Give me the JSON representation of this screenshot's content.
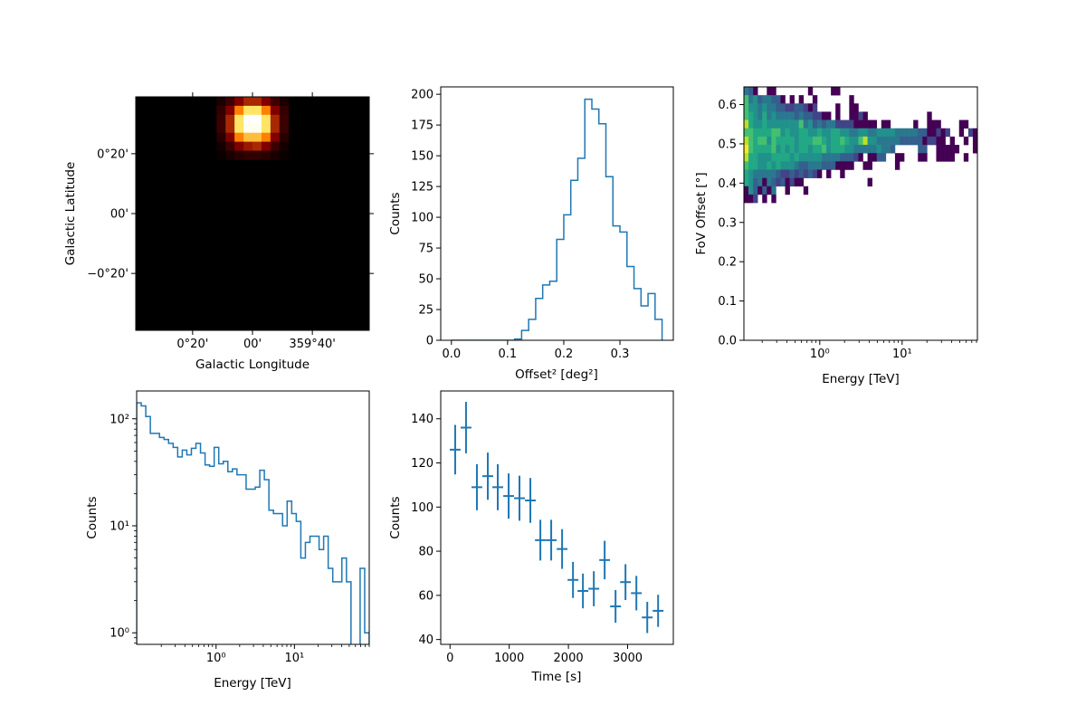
{
  "colors": {
    "line": "#1f77b4",
    "axes": "#000000",
    "background": "#ffffff"
  },
  "chart_data": [
    {
      "id": "sky",
      "type": "heatmap",
      "xlabel": "Galactic Longitude",
      "ylabel": "Galactic Latitude",
      "colormap": "afmhot",
      "xlim_deg": [
        0.65,
        -0.65
      ],
      "ylim_deg": [
        -0.65,
        0.65
      ],
      "x_ticks": [
        {
          "value": 0.3333,
          "label": "0°20'"
        },
        {
          "value": 0,
          "label": "00'"
        },
        {
          "value": -0.3333,
          "label": "359°40'"
        }
      ],
      "y_ticks": [
        {
          "value": 0.3333,
          "label": "0°20'"
        },
        {
          "value": 0,
          "label": "00'"
        },
        {
          "value": -0.3333,
          "label": "−0°20'"
        }
      ],
      "source_pixels_normalized": [
        [
          0.05,
          0.12,
          0.25,
          0.33,
          0.33,
          0.25,
          0.12,
          0.05
        ],
        [
          0.1,
          0.25,
          0.5,
          0.7,
          0.7,
          0.5,
          0.25,
          0.1
        ],
        [
          0.12,
          0.33,
          0.7,
          1.0,
          1.0,
          0.7,
          0.33,
          0.12
        ],
        [
          0.12,
          0.33,
          0.7,
          0.97,
          0.97,
          0.7,
          0.33,
          0.12
        ],
        [
          0.08,
          0.25,
          0.5,
          0.62,
          0.62,
          0.5,
          0.25,
          0.08
        ],
        [
          0.04,
          0.12,
          0.25,
          0.3,
          0.33,
          0.25,
          0.12,
          0.04
        ],
        [
          0.02,
          0.05,
          0.08,
          0.1,
          0.1,
          0.08,
          0.05,
          0.02
        ]
      ]
    },
    {
      "id": "offset",
      "type": "bar",
      "histtype": "step",
      "xlabel": "Offset² [deg²]",
      "ylabel": "Counts",
      "xlim": [
        -0.019,
        0.395
      ],
      "ylim": [
        0,
        206
      ],
      "bin_range": [
        0,
        0.375
      ],
      "values": [
        0,
        0,
        0,
        0,
        0,
        0,
        0,
        0,
        0,
        1,
        8,
        17,
        34,
        45,
        48,
        82,
        102,
        130,
        148,
        196,
        188,
        176,
        133,
        93,
        88,
        60,
        42,
        28,
        38,
        17
      ],
      "x_ticks": [
        0.0,
        0.1,
        0.2,
        0.3
      ],
      "x_tick_labels": [
        "0.0",
        "0.1",
        "0.2",
        "0.3"
      ],
      "y_ticks": [
        0,
        25,
        50,
        75,
        100,
        125,
        150,
        175,
        200
      ],
      "y_tick_labels": [
        "0",
        "25",
        "50",
        "75",
        "100",
        "125",
        "150",
        "175",
        "200"
      ]
    },
    {
      "id": "offset-energy",
      "type": "heatmap",
      "colormap": "viridis",
      "xlabel": "Energy [TeV]",
      "ylabel": "FoV Offset [°]",
      "xscale": "log",
      "xlim": [
        0.12,
        82
      ],
      "ylim": [
        0,
        0.645
      ],
      "x_bin_range": [
        0.12,
        82
      ],
      "y_bin_range": [
        0.35,
        0.645
      ],
      "levels_top_to_bottom": [
        "431001100000001000011000000000000000000000000000000",
        "745344331010100100000001000000000000000000000000000",
        "755454433223321200001001100000000000000000000000000",
        "765464544443433221101001121000000000000010000000000",
        "865565555555745343442222111110110000010011100001100",
        "776666775655665565566554455445555444443311212001021",
        "876775766665666776566765578554444433333122110100101",
        "976666756565665667566655444445443000003300111110001",
        "866555666656555554444333210113300110001100111100100",
        "766556565554334443331111001100000100000000000000000",
        "654444432232323210100100000000000000000000000000000",
        "653414323121100000000000000100000000000000000000000",
        "153131400100010000000000000000000000000000000000000",
        "112010100000000000000000000000000000000000000000000"
      ],
      "level_colors": [
        "#ffffff",
        "#440154",
        "#414487",
        "#355f8d",
        "#2a788e",
        "#21918c",
        "#22a884",
        "#44bf70",
        "#bddf26",
        "#fde725"
      ],
      "x_ticks": [
        1,
        10
      ],
      "x_tick_labels": [
        "10⁰",
        "10¹"
      ],
      "y_ticks": [
        0,
        0.1,
        0.2,
        0.3,
        0.4,
        0.5,
        0.6
      ],
      "y_tick_labels": [
        "0.0",
        "0.1",
        "0.2",
        "0.3",
        "0.4",
        "0.5",
        "0.6"
      ]
    },
    {
      "id": "energy",
      "type": "bar",
      "histtype": "step",
      "xlabel": "Energy [TeV]",
      "ylabel": "Counts",
      "xscale": "log",
      "yscale": "log",
      "xlim": [
        0.097,
        90
      ],
      "ylim": [
        0.78,
        182
      ],
      "bin_range": [
        0.097,
        90
      ],
      "values": [
        141,
        132,
        105,
        73,
        73,
        67,
        64,
        59,
        54,
        44,
        51,
        46,
        53,
        59,
        48,
        37,
        36,
        54,
        38,
        40,
        32,
        34,
        30,
        30,
        22,
        22,
        23,
        33,
        27,
        14,
        13,
        13,
        10,
        17,
        13,
        11,
        5,
        7,
        8,
        8,
        6,
        8,
        4,
        3,
        3,
        5,
        3,
        0,
        0,
        4,
        1
      ],
      "x_ticks": [
        1,
        10
      ],
      "x_tick_labels": [
        "10⁰",
        "10¹"
      ],
      "y_ticks": [
        1,
        10,
        100
      ],
      "y_tick_labels": [
        "10⁰",
        "10¹",
        "10²"
      ]
    },
    {
      "id": "lightcurve",
      "type": "scatter",
      "errorbars": true,
      "xlabel": "Time [s]",
      "ylabel": "Counts",
      "xlim": [
        -157,
        3772
      ],
      "ylim": [
        37.8,
        152.6
      ],
      "x": [
        87,
        270,
        454,
        638,
        806,
        990,
        1173,
        1357,
        1526,
        1709,
        1893,
        2077,
        2245,
        2429,
        2612,
        2796,
        2964,
        3148,
        3332,
        3515
      ],
      "y": [
        126,
        136,
        109,
        114,
        109,
        105,
        104,
        103,
        85,
        85,
        81,
        67,
        62,
        63,
        76,
        55,
        66,
        61,
        50,
        53
      ],
      "xerr": 91,
      "yerr": "sqrt(y)",
      "x_ticks": [
        0,
        1000,
        2000,
        3000
      ],
      "x_tick_labels": [
        "0",
        "1000",
        "2000",
        "3000"
      ],
      "y_ticks": [
        40,
        60,
        80,
        100,
        120,
        140
      ],
      "y_tick_labels": [
        "40",
        "60",
        "80",
        "100",
        "120",
        "140"
      ]
    }
  ]
}
